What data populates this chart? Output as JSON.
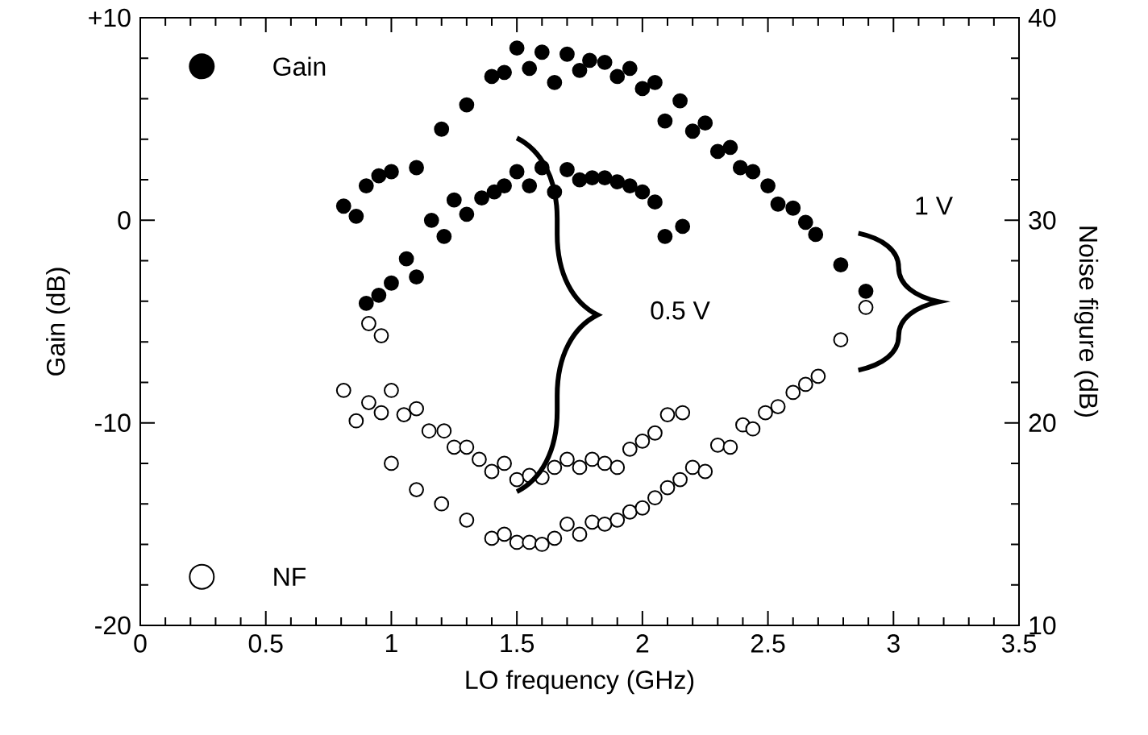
{
  "chart_data": {
    "type": "scatter",
    "xlabel": "LO frequency (GHz)",
    "ylabel": "Gain (dB)",
    "y2label": "Noise figure (dB)",
    "xlim": [
      0,
      3.5
    ],
    "xticks": [
      0,
      0.5,
      1,
      1.5,
      2,
      2.5,
      3,
      3.5
    ],
    "ylim": [
      -20,
      10
    ],
    "yticks": [
      {
        "value": 10,
        "label": "+10"
      },
      0,
      -10,
      -20
    ],
    "y2lim": [
      10,
      40
    ],
    "y2ticks": [
      10,
      20,
      30,
      40
    ],
    "marker": "circle",
    "legend": "left",
    "annotations": [
      "0.5 V",
      "1 V"
    ],
    "series": [
      {
        "name": "Gain",
        "color": "#000000",
        "x": [
          0.81,
          0.86,
          0.9,
          0.95,
          1.0,
          1.1,
          1.2,
          1.3,
          1.4,
          1.45,
          1.5,
          1.55,
          1.6,
          1.65,
          1.7,
          1.75,
          1.79,
          1.85,
          1.9,
          1.95,
          2.0,
          2.05,
          2.09,
          2.15,
          2.2,
          2.25,
          2.3,
          2.35,
          2.39,
          2.44,
          2.5,
          2.54,
          2.6,
          2.65,
          2.69,
          2.79,
          2.89,
          0.9,
          0.95,
          1.0,
          1.06,
          1.1,
          1.16,
          1.21,
          1.25,
          1.3,
          1.36,
          1.41,
          1.45,
          1.5,
          1.55,
          1.6,
          1.65,
          1.7,
          1.75,
          1.8,
          1.85,
          1.9,
          1.95,
          2.0,
          2.05,
          2.09,
          2.16
        ],
        "values": [
          0.7,
          0.2,
          1.7,
          2.2,
          2.4,
          2.6,
          4.5,
          5.7,
          7.1,
          7.3,
          8.5,
          7.5,
          8.3,
          6.8,
          8.2,
          7.4,
          7.9,
          7.8,
          7.1,
          7.5,
          6.5,
          6.8,
          4.9,
          5.9,
          4.4,
          4.8,
          3.4,
          3.6,
          2.6,
          2.4,
          1.7,
          0.8,
          0.6,
          -0.1,
          -0.7,
          -2.2,
          -3.5,
          -4.1,
          -3.7,
          -3.1,
          -1.9,
          -2.8,
          0.0,
          -0.8,
          1.0,
          0.3,
          1.1,
          1.4,
          1.7,
          2.4,
          1.7,
          2.6,
          1.4,
          2.5,
          2.0,
          2.1,
          2.1,
          1.9,
          1.7,
          1.4,
          0.9,
          -0.8,
          -0.3
        ]
      },
      {
        "name": "NF",
        "color": "#ffffff",
        "axis": "y2",
        "x": [
          0.91,
          0.96,
          0.81,
          0.86,
          0.91,
          0.96,
          1.0,
          1.05,
          1.1,
          1.15,
          1.21,
          1.25,
          1.3,
          1.35,
          1.4,
          1.45,
          1.5,
          1.55,
          1.6,
          1.65,
          1.7,
          1.75,
          1.8,
          1.85,
          1.9,
          1.95,
          2.0,
          2.05,
          2.1,
          2.16,
          1.0,
          1.1,
          1.2,
          1.3,
          1.4,
          1.45,
          1.5,
          1.55,
          1.6,
          1.65,
          1.7,
          1.75,
          1.8,
          1.85,
          1.9,
          1.95,
          2.0,
          2.05,
          2.1,
          2.15,
          2.2,
          2.25,
          2.3,
          2.35,
          2.4,
          2.44,
          2.49,
          2.54,
          2.6,
          2.65,
          2.7,
          2.79,
          2.89
        ],
        "values": [
          24.9,
          24.3,
          21.6,
          20.1,
          21.0,
          20.5,
          21.6,
          20.4,
          20.7,
          19.6,
          19.6,
          18.8,
          18.8,
          18.2,
          17.6,
          18.0,
          17.2,
          17.4,
          17.3,
          17.8,
          18.2,
          17.8,
          18.2,
          18.0,
          17.8,
          18.7,
          19.1,
          19.5,
          20.4,
          20.5,
          18.0,
          16.7,
          16.0,
          15.2,
          14.3,
          14.5,
          14.1,
          14.1,
          14.0,
          14.3,
          15.0,
          14.5,
          15.1,
          15.0,
          15.2,
          15.6,
          15.8,
          16.3,
          16.8,
          17.2,
          17.8,
          17.6,
          18.9,
          18.8,
          19.9,
          19.7,
          20.5,
          20.8,
          21.5,
          21.9,
          22.3,
          24.1,
          25.7
        ]
      }
    ]
  }
}
